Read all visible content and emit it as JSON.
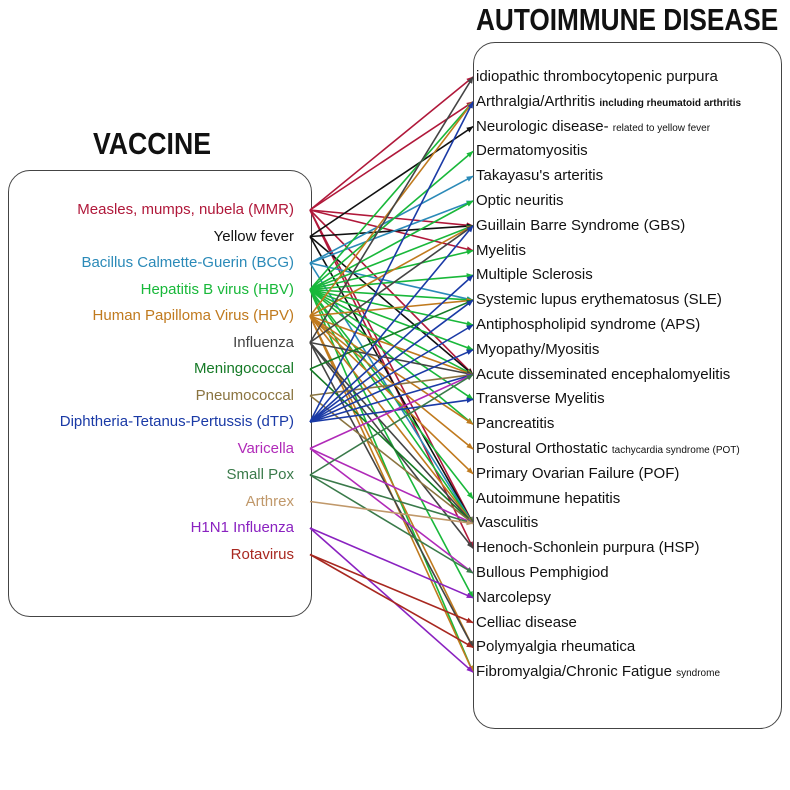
{
  "titles": {
    "vaccine": "VACCINE",
    "disease": "AUTOIMMUNE DISEASE"
  },
  "vaccines": [
    {
      "label": "Measles, mumps, nubela (MMR)",
      "color": "#b0183a"
    },
    {
      "label": "Yellow fever",
      "color": "#111111"
    },
    {
      "label": "Bacillus Calmette-Guerin (BCG)",
      "color": "#2b8ab8"
    },
    {
      "label": "Hepatitis B virus (HBV)",
      "color": "#19b83a"
    },
    {
      "label": "Human Papilloma Virus (HPV)",
      "color": "#c07a1e"
    },
    {
      "label": "Influenza",
      "color": "#444444"
    },
    {
      "label": "Meningococcal",
      "color": "#157a26"
    },
    {
      "label": "Pneumococcal",
      "color": "#8a7440"
    },
    {
      "label": "Diphtheria-Tetanus-Pertussis (dTP)",
      "color": "#1a3aa6"
    },
    {
      "label": "Varicella",
      "color": "#b02ab8"
    },
    {
      "label": "Small Pox",
      "color": "#3a7a4a"
    },
    {
      "label": "Arthrex",
      "color": "#c0986a"
    },
    {
      "label": "H1N1 Influenza",
      "color": "#8a22c0"
    },
    {
      "label": "Rotavirus",
      "color": "#a82820"
    }
  ],
  "diseases": [
    {
      "main": "idiopathic thrombocytopenic purpura",
      "note": ""
    },
    {
      "main": "Arthralgia/Arthritis",
      "note": "including rheumatoid arthritis"
    },
    {
      "main": "Neurologic disease-",
      "note": "related to yellow fever"
    },
    {
      "main": "Dermatomyositis",
      "note": ""
    },
    {
      "main": "Takayasu's arteritis",
      "note": ""
    },
    {
      "main": "Optic neuritis",
      "note": ""
    },
    {
      "main": "Guillain Barre Syndrome (GBS)",
      "note": ""
    },
    {
      "main": "Myelitis",
      "note": ""
    },
    {
      "main": "Multiple Sclerosis",
      "note": ""
    },
    {
      "main": "Systemic lupus erythematosus (SLE)",
      "note": ""
    },
    {
      "main": "Antiphospholipid syndrome (APS)",
      "note": ""
    },
    {
      "main": "Myopathy/Myositis",
      "note": ""
    },
    {
      "main": "Acute disseminated encephalomyelitis",
      "note": ""
    },
    {
      "main": "Transverse Myelitis",
      "note": ""
    },
    {
      "main": "Pancreatitis",
      "note": ""
    },
    {
      "main": "Postural Orthostatic",
      "note": "tachycardia syndrome (POT)"
    },
    {
      "main": "Primary Ovarian Failure (POF)",
      "note": ""
    },
    {
      "main": "Autoimmune hepatitis",
      "note": ""
    },
    {
      "main": "Vasculitis",
      "note": ""
    },
    {
      "main": "Henoch-Schonlein purpura (HSP)",
      "note": ""
    },
    {
      "main": "Bullous Pemphigiod",
      "note": ""
    },
    {
      "main": "Narcolepsy",
      "note": ""
    },
    {
      "main": "Celliac disease",
      "note": ""
    },
    {
      "main": "Polymyalgia rheumatica",
      "note": ""
    },
    {
      "main": "Fibromyalgia/Chronic Fatigue",
      "note": "syndrome"
    }
  ],
  "links": [
    [
      0,
      0
    ],
    [
      0,
      1
    ],
    [
      0,
      6
    ],
    [
      0,
      7
    ],
    [
      0,
      12
    ],
    [
      0,
      18
    ],
    [
      0,
      19
    ],
    [
      1,
      2
    ],
    [
      1,
      6
    ],
    [
      1,
      12
    ],
    [
      1,
      18
    ],
    [
      2,
      4
    ],
    [
      2,
      5
    ],
    [
      2,
      9
    ],
    [
      2,
      18
    ],
    [
      3,
      1
    ],
    [
      3,
      3
    ],
    [
      3,
      5
    ],
    [
      3,
      6
    ],
    [
      3,
      7
    ],
    [
      3,
      8
    ],
    [
      3,
      9
    ],
    [
      3,
      10
    ],
    [
      3,
      11
    ],
    [
      3,
      12
    ],
    [
      3,
      13
    ],
    [
      3,
      14
    ],
    [
      3,
      17
    ],
    [
      3,
      18
    ],
    [
      3,
      21
    ],
    [
      3,
      24
    ],
    [
      4,
      1
    ],
    [
      4,
      6
    ],
    [
      4,
      9
    ],
    [
      4,
      12
    ],
    [
      4,
      14
    ],
    [
      4,
      15
    ],
    [
      4,
      16
    ],
    [
      4,
      18
    ],
    [
      4,
      23
    ],
    [
      4,
      24
    ],
    [
      5,
      0
    ],
    [
      5,
      6
    ],
    [
      5,
      12
    ],
    [
      5,
      18
    ],
    [
      5,
      19
    ],
    [
      5,
      23
    ],
    [
      6,
      9
    ],
    [
      6,
      18
    ],
    [
      7,
      12
    ],
    [
      7,
      18
    ],
    [
      8,
      1
    ],
    [
      8,
      6
    ],
    [
      8,
      8
    ],
    [
      8,
      9
    ],
    [
      8,
      10
    ],
    [
      8,
      11
    ],
    [
      8,
      12
    ],
    [
      8,
      13
    ],
    [
      9,
      12
    ],
    [
      9,
      18
    ],
    [
      9,
      20
    ],
    [
      10,
      12
    ],
    [
      10,
      18
    ],
    [
      10,
      20
    ],
    [
      11,
      18
    ],
    [
      12,
      21
    ],
    [
      12,
      24
    ],
    [
      13,
      22
    ],
    [
      13,
      23
    ]
  ]
}
